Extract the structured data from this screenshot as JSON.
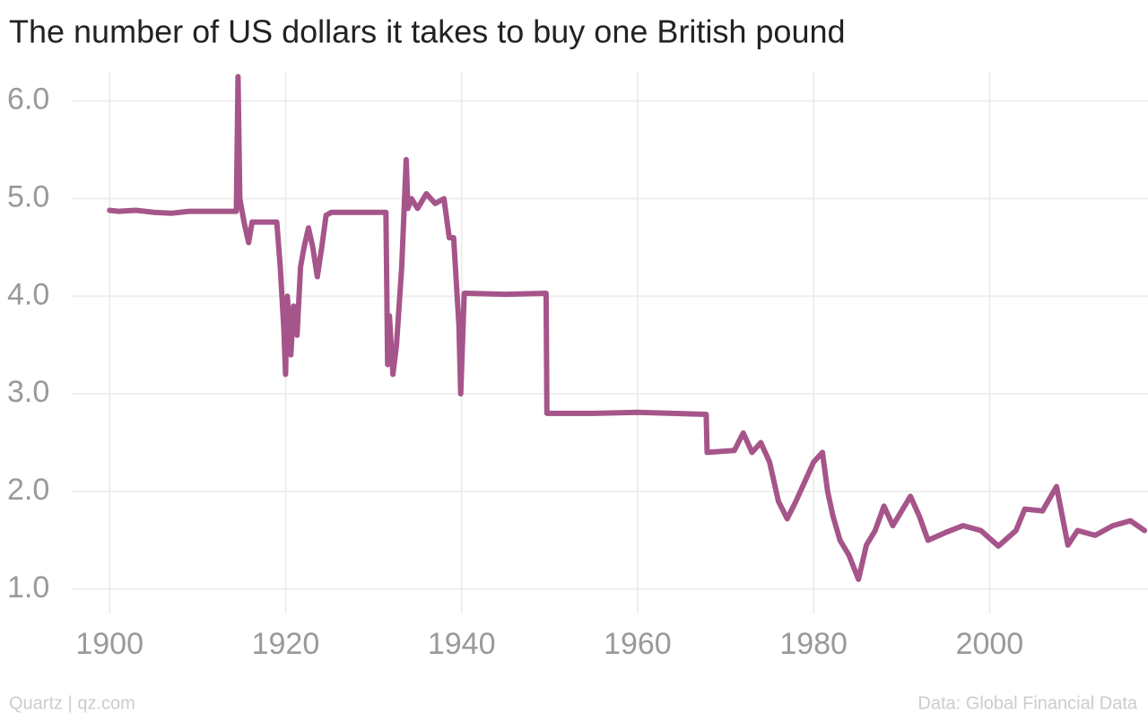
{
  "chart_data": {
    "type": "line",
    "title": "The number of US dollars it takes to buy one British pound",
    "source": "Data: Global Financial Data",
    "credit": "Quartz | qz.com",
    "color": "#a6558a",
    "grid": true,
    "xlim": [
      1895.7,
      2018
    ],
    "ylim": [
      0.75,
      6.3
    ],
    "xticks": [
      1900,
      1920,
      1940,
      1960,
      1980,
      2000
    ],
    "yticks": [
      {
        "value": 1,
        "label": "1.0"
      },
      {
        "value": 2,
        "label": "2.0"
      },
      {
        "value": 3,
        "label": "3.0"
      },
      {
        "value": 4,
        "label": "4.0"
      },
      {
        "value": 5,
        "label": "5.0"
      },
      {
        "value": 6,
        "label": "6.0"
      }
    ],
    "x": [
      1900,
      1901,
      1903,
      1905,
      1907,
      1909,
      1911,
      1914.4,
      1914.6,
      1914.8,
      1915.3,
      1915.8,
      1916.2,
      1919,
      1919.4,
      1919.8,
      1920,
      1920.2,
      1920.6,
      1920.9,
      1921.3,
      1921.7,
      1922.1,
      1922.6,
      1923.1,
      1923.6,
      1924.1,
      1924.6,
      1925.2,
      1928,
      1931.4,
      1931.6,
      1931.8,
      1932.2,
      1932.6,
      1933.2,
      1933.7,
      1933.9,
      1934.3,
      1935,
      1936,
      1937,
      1938,
      1938.6,
      1939.1,
      1939.7,
      1939.9,
      1940.3,
      1940.6,
      1945,
      1949.6,
      1949.7,
      1955,
      1960,
      1967.8,
      1967.9,
      1971,
      1972,
      1973,
      1974,
      1975,
      1976,
      1977,
      1978,
      1979,
      1980,
      1981,
      1981.6,
      1982.2,
      1983,
      1984,
      1985.1,
      1986,
      1987,
      1988,
      1989,
      1990,
      1991,
      1992,
      1993,
      1995,
      1997,
      1999,
      2001,
      2003,
      2004,
      2006,
      2007.6,
      2008.9,
      2010,
      2012,
      2014,
      2016,
      2017.6
    ],
    "values": [
      4.88,
      4.87,
      4.88,
      4.86,
      4.85,
      4.87,
      4.87,
      4.87,
      6.25,
      5.0,
      4.75,
      4.55,
      4.76,
      4.76,
      4.3,
      3.66,
      3.2,
      4.0,
      3.4,
      3.9,
      3.6,
      4.3,
      4.5,
      4.7,
      4.5,
      4.2,
      4.5,
      4.83,
      4.86,
      4.86,
      4.86,
      3.3,
      3.8,
      3.2,
      3.5,
      4.3,
      5.4,
      4.9,
      5.0,
      4.9,
      5.05,
      4.95,
      5.0,
      4.6,
      4.6,
      3.7,
      3.0,
      4.03,
      4.03,
      4.02,
      4.03,
      2.8,
      2.8,
      2.81,
      2.79,
      2.4,
      2.42,
      2.6,
      2.4,
      2.5,
      2.3,
      1.9,
      1.72,
      1.9,
      2.1,
      2.3,
      2.4,
      2.0,
      1.75,
      1.5,
      1.35,
      1.1,
      1.45,
      1.6,
      1.85,
      1.65,
      1.8,
      1.95,
      1.75,
      1.5,
      1.58,
      1.65,
      1.6,
      1.44,
      1.6,
      1.82,
      1.8,
      2.05,
      1.45,
      1.6,
      1.55,
      1.65,
      1.7,
      1.6
    ]
  }
}
